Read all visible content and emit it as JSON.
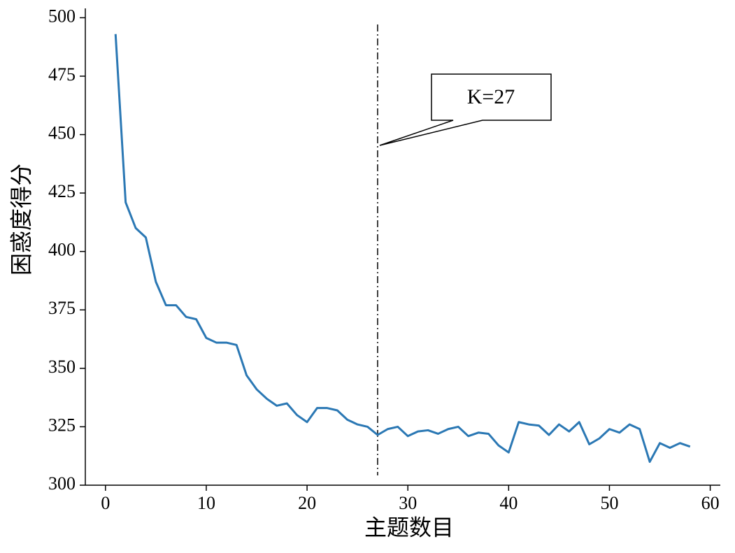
{
  "chart_data": {
    "type": "line",
    "x_label": "主题数目",
    "y_label": "困惑度得分",
    "annotation": "K=27",
    "vline": 27,
    "xlim": [
      -2,
      61
    ],
    "ylim": [
      300,
      504
    ],
    "xticks": [
      0,
      10,
      20,
      30,
      40,
      50,
      60
    ],
    "yticks": [
      300,
      325,
      350,
      375,
      400,
      425,
      450,
      475,
      500
    ],
    "x": [
      1,
      2,
      3,
      4,
      5,
      6,
      7,
      8,
      9,
      10,
      11,
      12,
      13,
      14,
      15,
      16,
      17,
      18,
      19,
      20,
      21,
      22,
      23,
      24,
      25,
      26,
      27,
      28,
      29,
      30,
      31,
      32,
      33,
      34,
      35,
      36,
      37,
      38,
      39,
      40,
      41,
      42,
      43,
      44,
      45,
      46,
      47,
      48,
      49,
      50,
      51,
      52,
      53,
      54,
      55,
      56,
      57,
      58
    ],
    "series": [
      {
        "color": "#2b78b4",
        "values": [
          493,
          421,
          410,
          406,
          387,
          377,
          377,
          372,
          371,
          363,
          361,
          361,
          360,
          347,
          341,
          337,
          334,
          335,
          330,
          327,
          333,
          333,
          332,
          328,
          326,
          325,
          321.5,
          324,
          325,
          321,
          323,
          323.5,
          322,
          324,
          325,
          321,
          322.5,
          322,
          317,
          314,
          327,
          326,
          325.5,
          321.5,
          326,
          323,
          327,
          317.5,
          320,
          324,
          322.5,
          326,
          324,
          310,
          318,
          316,
          318,
          316.5
        ]
      }
    ]
  }
}
